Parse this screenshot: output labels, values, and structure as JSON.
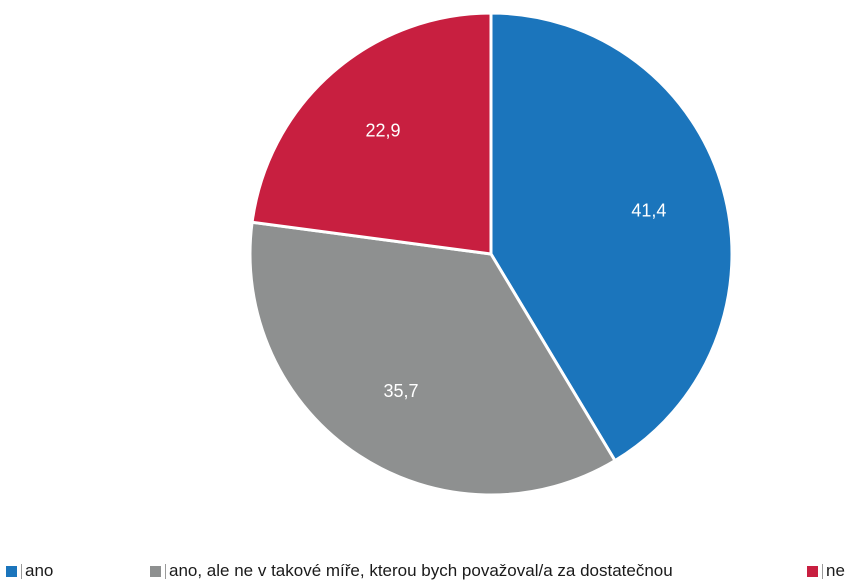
{
  "chart_data": {
    "type": "pie",
    "title": "",
    "slices": [
      {
        "label": "ano",
        "value": 41.4,
        "display": "41,4",
        "color": "#1b75bc"
      },
      {
        "label": "ano, ale ne v takové míře, kterou bych  považoval/a za dostatečnou",
        "value": 35.7,
        "display": "35,7",
        "color": "#8e9090"
      },
      {
        "label": "ne",
        "value": 22.9,
        "display": "22,9",
        "color": "#c81f40"
      }
    ],
    "start_angle_deg": 0,
    "direction": "clockwise",
    "legend_position": "bottom"
  }
}
